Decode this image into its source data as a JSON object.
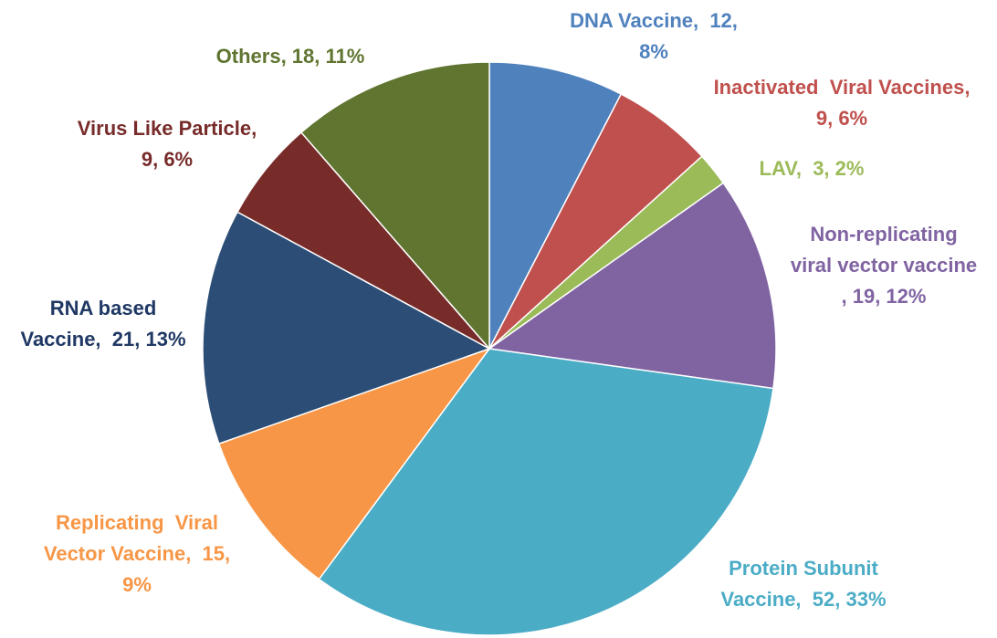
{
  "chart_data": {
    "type": "pie",
    "title": "",
    "slices": [
      {
        "name": "DNA Vaccine",
        "value": 12,
        "percent": "8%",
        "color": "#4f81bd",
        "label_lines": [
          "DNA Vaccine,  12,",
          "8%"
        ]
      },
      {
        "name": "Inactivated Viral Vaccines",
        "value": 9,
        "percent": "6%",
        "color": "#c0504d",
        "label_lines": [
          "Inactivated  Viral Vaccines,",
          "9, 6%"
        ]
      },
      {
        "name": "LAV",
        "value": 3,
        "percent": "2%",
        "color": "#9bbb59",
        "label_lines": [
          "LAV,  3, 2%"
        ]
      },
      {
        "name": "Non-replicating viral vector vaccine",
        "value": 19,
        "percent": "12%",
        "color": "#8064a2",
        "label_lines": [
          "Non-replicating",
          "viral vector vaccine",
          ", 19, 12%"
        ]
      },
      {
        "name": "Protein Subunit Vaccine",
        "value": 52,
        "percent": "33%",
        "color": "#4bacc6",
        "label_lines": [
          "Protein Subunit",
          "Vaccine,  52, 33%"
        ]
      },
      {
        "name": "Replicating Viral Vector Vaccine",
        "value": 15,
        "percent": "9%",
        "color": "#f79646",
        "label_lines": [
          "Replicating  Viral",
          "Vector Vaccine,  15,",
          "9%"
        ]
      },
      {
        "name": "RNA based Vaccine",
        "value": 21,
        "percent": "13%",
        "color": "#2c4d75",
        "label_lines": [
          "RNA based",
          "Vaccine,  21, 13%"
        ]
      },
      {
        "name": "Virus Like Particle",
        "value": 9,
        "percent": "6%",
        "color": "#772c2a",
        "label_lines": [
          "Virus Like Particle,",
          "9, 6%"
        ]
      },
      {
        "name": "Others",
        "value": 18,
        "percent": "11%",
        "color": "#5f7530",
        "label_lines": [
          "Others, 18, 11%"
        ]
      }
    ],
    "start_angle_deg": 0,
    "direction": "clockwise",
    "legend": "none",
    "data_labels": "outside"
  }
}
